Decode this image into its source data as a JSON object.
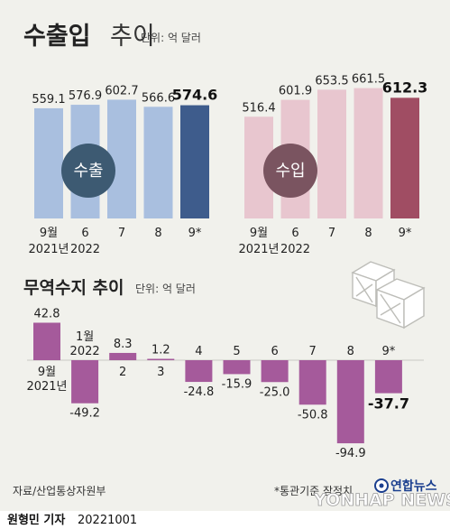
{
  "title": {
    "main": "수출입",
    "light": "추이",
    "unit": "단위: 억 달러"
  },
  "badges": {
    "export": "수출",
    "import": "수입"
  },
  "balance_header": {
    "title": "무역수지 추이",
    "unit": "단위: 억 달러"
  },
  "footer": {
    "source": "자료/산업통상자원부",
    "note": "*통관기준 잠정치",
    "logo": "연합뉴스",
    "watermark": "YONHAP NEWS",
    "byline_name": "원형민 기자",
    "byline_date": "20221001"
  },
  "colors": {
    "export_bar": "#a9bfdf",
    "export_bar_latest": "#3e5c8c",
    "export_badge": "#3d5a72",
    "import_bar": "#e8c6cf",
    "import_bar_latest": "#a04d63",
    "import_badge": "#7a5460",
    "balance_bar": "#a55a9b",
    "panel_bg": "#f1f1ec"
  },
  "chart_data": [
    {
      "type": "bar",
      "name": "수출",
      "categories": [
        "9월\n2021년",
        "6\n2022",
        "7",
        "8",
        "9*"
      ],
      "values": [
        559.1,
        576.9,
        602.7,
        566.6,
        574.6
      ],
      "value_labels": [
        "559.1",
        "576.9",
        "602.7",
        "566.6",
        "574.6"
      ]
    },
    {
      "type": "bar",
      "name": "수입",
      "categories": [
        "9월\n2021년",
        "6\n2022",
        "7",
        "8",
        "9*"
      ],
      "values": [
        516.4,
        601.9,
        653.5,
        661.5,
        612.3
      ],
      "value_labels": [
        "516.4",
        "601.9",
        "653.5",
        "661.5",
        "612.3"
      ]
    },
    {
      "type": "bar",
      "name": "무역수지",
      "categories": [
        "9월\n2021년",
        "1월\n2022",
        "2",
        "3",
        "4",
        "5",
        "6",
        "7",
        "8",
        "9*"
      ],
      "values": [
        42.8,
        -49.2,
        8.3,
        1.2,
        -24.8,
        -15.9,
        -25.0,
        -50.8,
        -94.9,
        -37.7
      ],
      "value_labels": [
        "42.8",
        "-49.2",
        "8.3",
        "1.2",
        "-24.8",
        "-15.9",
        "-25.0",
        "-50.8",
        "-94.9",
        "-37.7"
      ]
    }
  ]
}
